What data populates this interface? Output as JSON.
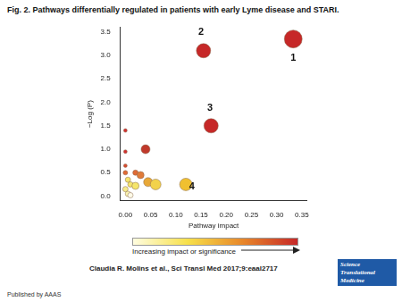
{
  "chart_data": {
    "type": "bubble",
    "title": "Fig. 2. Pathways differentially regulated in patients with early Lyme disease and STARI.",
    "x_label": "Pathway impact",
    "y_label": "−Log (P)",
    "x": [
      0.333,
      0.155,
      0.17,
      0.12,
      0.04,
      0.0,
      0.0,
      0.0,
      0.0,
      0.02,
      0.03,
      0.045,
      0.06,
      0.005,
      0.01,
      0.02,
      0.0,
      0.005,
      0.01
    ],
    "y": [
      3.35,
      3.1,
      1.5,
      0.25,
      1.0,
      1.4,
      0.95,
      0.65,
      0.5,
      0.5,
      0.45,
      0.3,
      0.25,
      0.35,
      0.25,
      0.22,
      0.15,
      0.05,
      0.02
    ],
    "sizes": [
      10,
      8,
      8,
      7,
      5,
      2,
      2,
      2,
      2.5,
      3,
      4,
      5,
      6,
      3,
      3,
      4,
      3,
      3,
      3
    ],
    "colors": [
      "#c62828",
      "#c62828",
      "#c62828",
      "#f0c030",
      "#c0392b",
      "#d32f2f",
      "#d32f2f",
      "#d84a2f",
      "#e06a35",
      "#e06a35",
      "#e07b39",
      "#e8a838",
      "#f2d24b",
      "#f5e56b",
      "#f5e56b",
      "#f5e56b",
      "#f7ec8a",
      "#faf3b0",
      "#fffbe8"
    ],
    "xlim": [
      -0.01,
      0.36
    ],
    "ylim": [
      -0.1,
      3.6
    ],
    "xticks": [
      {
        "value": 0,
        "label": "0.00"
      },
      {
        "value": 0.05,
        "label": "0.05"
      },
      {
        "value": 0.1,
        "label": "0.10"
      },
      {
        "value": 0.15,
        "label": "0.15"
      },
      {
        "value": 0.2,
        "label": "0.20"
      },
      {
        "value": 0.25,
        "label": "0.25"
      },
      {
        "value": 0.3,
        "label": "0.30"
      },
      {
        "value": 0.35,
        "label": "0.35"
      }
    ],
    "yticks": [
      {
        "value": 0,
        "label": "0.0"
      },
      {
        "value": 0.5,
        "label": "0.5"
      },
      {
        "value": 1,
        "label": "1.0"
      },
      {
        "value": 1.5,
        "label": "1.5"
      },
      {
        "value": 2,
        "label": "2.0"
      },
      {
        "value": 2.5,
        "label": "2.5"
      },
      {
        "value": 3,
        "label": "3.0"
      },
      {
        "value": 3.5,
        "label": "3.5"
      }
    ],
    "grid": false,
    "annotations": [
      {
        "text": "1",
        "x": 0.333,
        "y": 2.95
      },
      {
        "text": "2",
        "x": 0.15,
        "y": 3.5
      },
      {
        "text": "3",
        "x": 0.168,
        "y": 1.88
      },
      {
        "text": "4",
        "x": 0.132,
        "y": 0.2
      }
    ],
    "colorbar": {
      "label": "Increasing impact or significance",
      "colors": [
        "#fffde0",
        "#f7e04a",
        "#e8872a",
        "#c62828"
      ]
    }
  },
  "credit": "Claudia R. Molins et al., Sci Transl Med 2017;9:eaal2717",
  "logo": "Science Translational Medicine",
  "publisher": "Published by AAAS"
}
